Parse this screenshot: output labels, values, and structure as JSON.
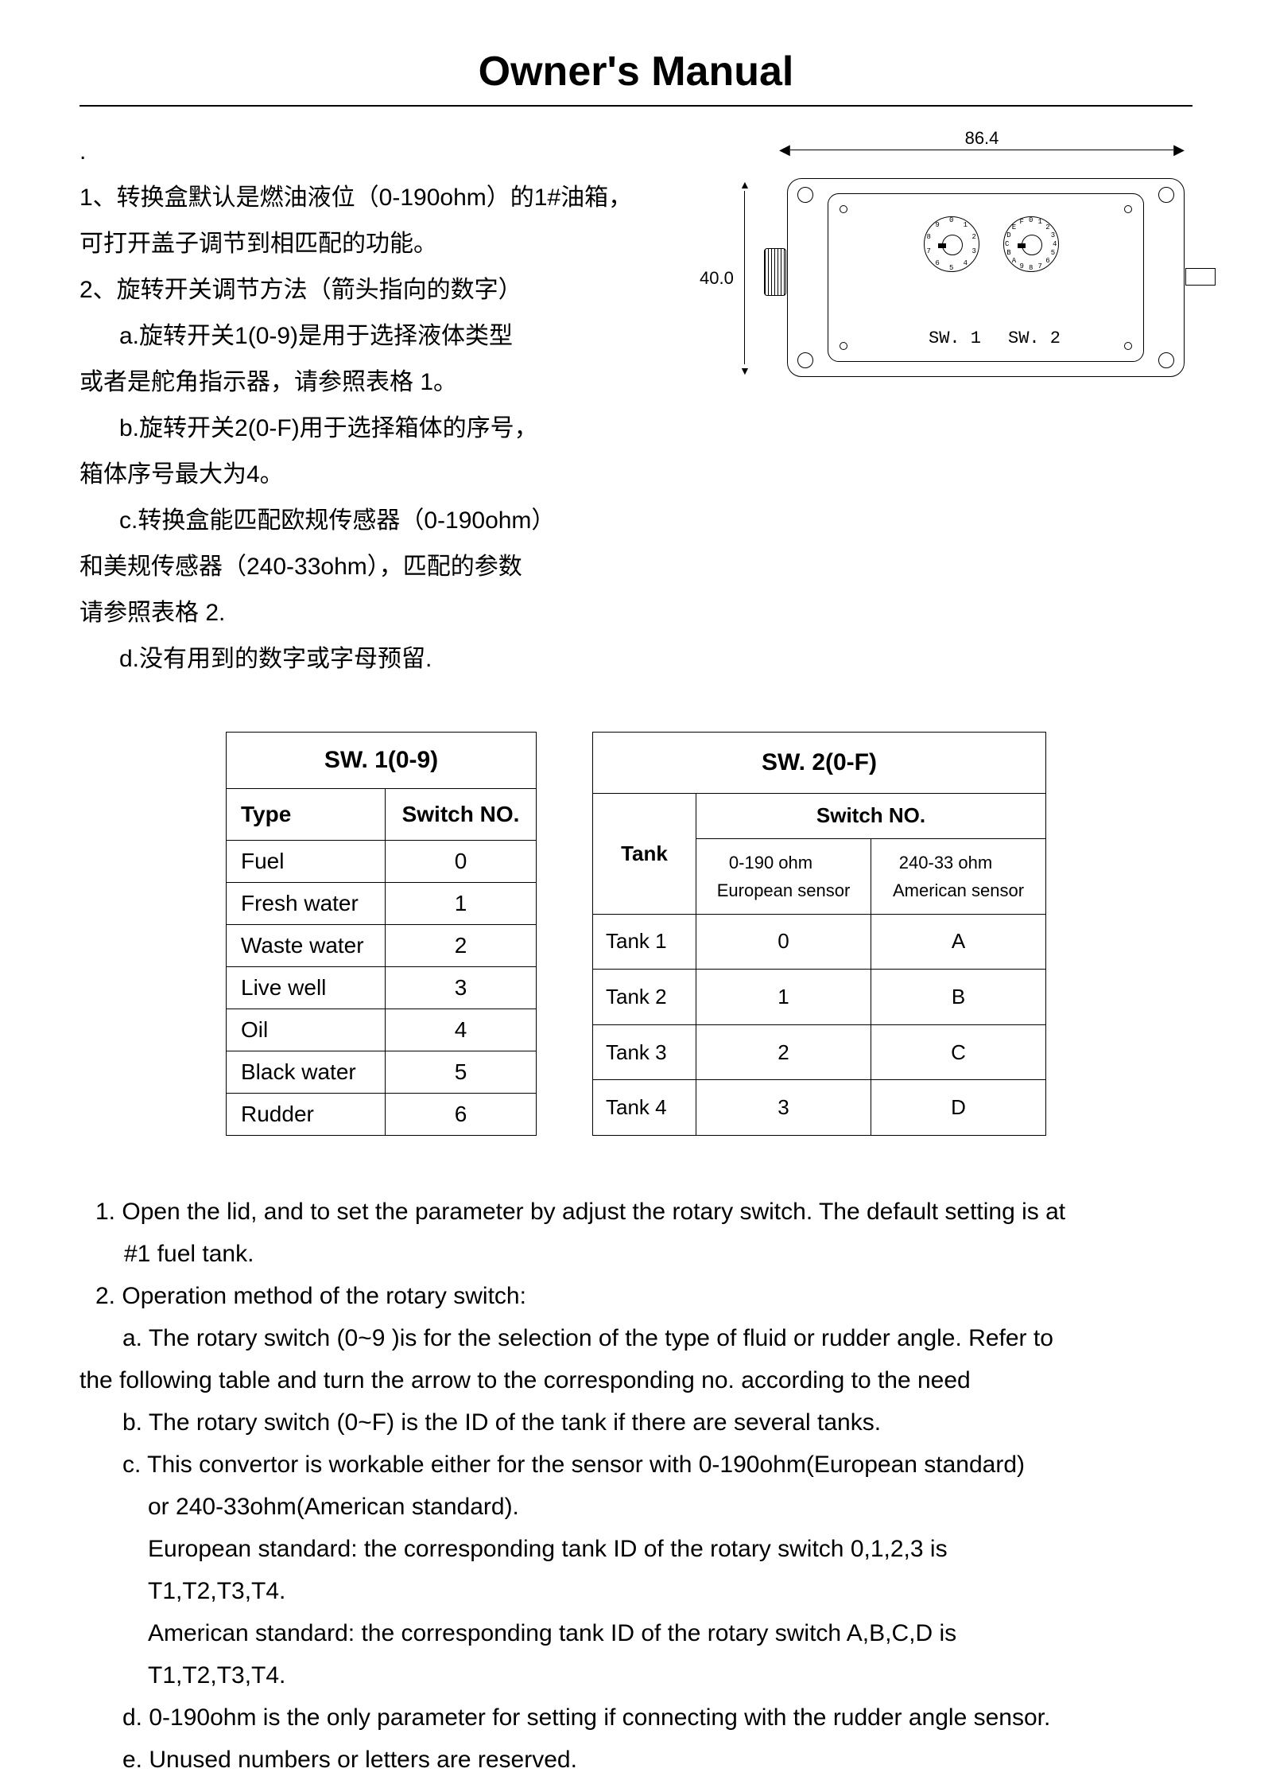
{
  "title": "Owner's Manual",
  "chinese": {
    "dot": ".",
    "p1a": "1、转换盒默认是燃油液位（0-190ohm）的1#油箱，",
    "p1b": "可打开盖子调节到相匹配的功能。",
    "p2": "2、旋转开关调节方法（箭头指向的数字）",
    "p2a1": "a.旋转开关1(0-9)是用于选择液体类型",
    "p2a2": "或者是舵角指示器，请参照表格 1。",
    "p2b1": "b.旋转开关2(0-F)用于选择箱体的序号，",
    "p2b2": "箱体序号最大为4。",
    "p2c1": "c.转换盒能匹配欧规传感器（0-190ohm）",
    "p2c2": "和美规传感器（240-33ohm），匹配的参数",
    "p2c3": "请参照表格 2.",
    "p2d": "d.没有用到的数字或字母预留."
  },
  "diagram": {
    "width_mm": "86.4",
    "height_mm": "40.0",
    "sw1_label": "SW. 1",
    "sw2_label": "SW. 2",
    "sw1_ticks": [
      "0",
      "1",
      "2",
      "3",
      "4",
      "5",
      "6",
      "7",
      "8",
      "9"
    ],
    "sw2_ticks": [
      "0",
      "1",
      "2",
      "3",
      "4",
      "5",
      "6",
      "7",
      "8",
      "9",
      "A",
      "B",
      "C",
      "D",
      "E",
      "F"
    ]
  },
  "table1": {
    "title": "SW. 1(0-9)",
    "col_type": "Type",
    "col_switch": "Switch NO.",
    "rows": [
      {
        "type": "Fuel",
        "no": "0"
      },
      {
        "type": "Fresh water",
        "no": "1"
      },
      {
        "type": "Waste water",
        "no": "2"
      },
      {
        "type": "Live well",
        "no": "3"
      },
      {
        "type": "Oil",
        "no": "4"
      },
      {
        "type": "Black water",
        "no": "5"
      },
      {
        "type": "Rudder",
        "no": "6"
      }
    ]
  },
  "table2": {
    "title": "SW. 2(0-F)",
    "col_tank": "Tank",
    "col_switch": "Switch NO.",
    "sub1a": "0-190 ohm",
    "sub1b": "European sensor",
    "sub2a": "240-33 ohm",
    "sub2b": "American sensor",
    "rows": [
      {
        "tank": "Tank 1",
        "eu": "0",
        "us": "A"
      },
      {
        "tank": "Tank 2",
        "eu": "1",
        "us": "B"
      },
      {
        "tank": "Tank 3",
        "eu": "2",
        "us": "C"
      },
      {
        "tank": "Tank 4",
        "eu": "3",
        "us": "D"
      }
    ]
  },
  "english": {
    "e1a": "1. Open the lid, and to set the parameter by adjust the rotary switch. The default setting is at",
    "e1b": "#1 fuel tank.",
    "e2": "2. Operation method of the rotary switch:",
    "e2a1": "a. The rotary switch (0~9 )is for the selection of the type of fluid or rudder angle. Refer to",
    "e2a2": "the following table and turn the arrow to the corresponding no. according to the need",
    "e2b": "b. The rotary switch (0~F) is the ID of the tank if there are several tanks.",
    "e2c1": "c. This convertor is workable either for the sensor with 0-190ohm(European standard)",
    "e2c2": "or 240-33ohm(American standard).",
    "e2c3": "European standard: the corresponding tank ID of the rotary switch 0,1,2,3 is",
    "e2c4": "T1,T2,T3,T4.",
    "e2c5": "American standard: the corresponding tank ID of the rotary switch A,B,C,D is",
    "e2c6": "T1,T2,T3,T4.",
    "e2d": "d. 0-190ohm is the only parameter for setting if connecting with the rudder angle sensor.",
    "e2e": "e. Unused numbers or letters are reserved."
  }
}
